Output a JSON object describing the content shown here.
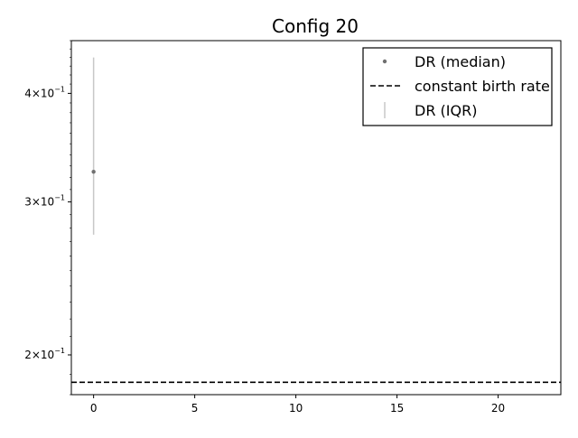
{
  "chart_data": {
    "type": "scatter",
    "title": "Config 20",
    "xlabel": "",
    "ylabel": "",
    "xlim": [
      -1.1,
      23.1
    ],
    "ylim": [
      0.18,
      0.46
    ],
    "yscale": "log",
    "grid": false,
    "legend_position": "top-right",
    "x_ticks": [
      0,
      5,
      10,
      15,
      20
    ],
    "x_tick_labels": [
      "0",
      "5",
      "10",
      "15",
      "20"
    ],
    "y_ticks": [
      {
        "value": 0.2,
        "mantissa": "2",
        "base": "10",
        "exponent": "−1"
      },
      {
        "value": 0.3,
        "mantissa": "3",
        "base": "10",
        "exponent": "−1"
      },
      {
        "value": 0.4,
        "mantissa": "4",
        "base": "10",
        "exponent": "−1"
      }
    ],
    "series": [
      {
        "name": "DR (median)",
        "style": "point",
        "color": "#707070",
        "points": [
          {
            "x": 0,
            "y": 0.325
          }
        ]
      },
      {
        "name": "constant birth rate",
        "style": "dashed-hline",
        "color": "#000000",
        "y": 0.186
      },
      {
        "name": "DR (IQR)",
        "style": "errorbar",
        "color": "#c8c8c8",
        "bars": [
          {
            "x": 0,
            "low": 0.275,
            "high": 0.44
          }
        ]
      }
    ],
    "legend": [
      "DR (median)",
      "constant birth rate",
      "DR (IQR)"
    ]
  }
}
